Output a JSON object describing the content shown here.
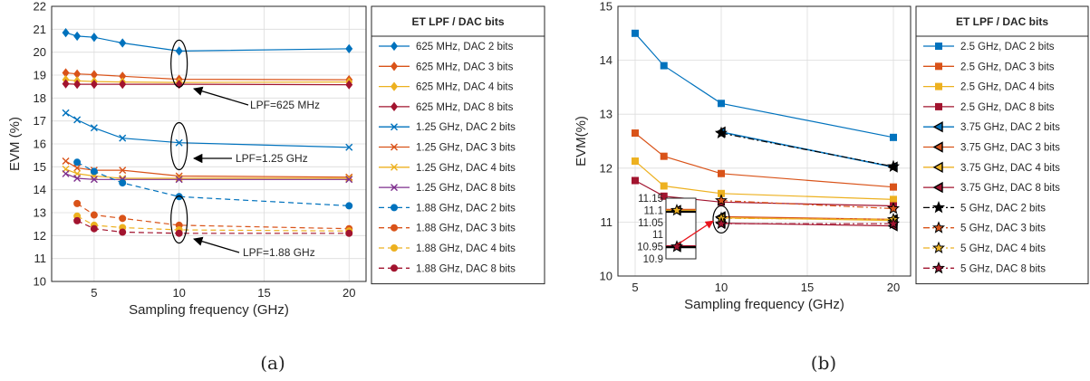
{
  "panel_labels": [
    "(a)",
    "(b)"
  ],
  "chart_data": [
    {
      "type": "line",
      "panel": "(a)",
      "xlabel": "Sampling frequency (GHz)",
      "ylabel": "EVM (%)",
      "xlim": [
        2.5,
        21
      ],
      "ylim": [
        10,
        22
      ],
      "xticks": [
        5,
        10,
        15,
        20
      ],
      "yticks": [
        10,
        11,
        12,
        13,
        14,
        15,
        16,
        17,
        18,
        19,
        20,
        21,
        22
      ],
      "grid": true,
      "legend_title": "ET LPF  / DAC bits",
      "legend_position": "outside-right",
      "annotations": [
        "LPF=625 MHz",
        "LPF=1.25 GHz",
        "LPF=1.88 GHz"
      ],
      "series": [
        {
          "name": "625 MHz, DAC 2 bits",
          "color": "#0072BD",
          "marker": "diamond",
          "dash": "solid",
          "x": [
            3.33,
            4,
            5,
            6.67,
            10,
            20
          ],
          "y": [
            20.85,
            20.7,
            20.65,
            20.4,
            20.05,
            20.15
          ]
        },
        {
          "name": "625 MHz, DAC 3 bits",
          "color": "#D95319",
          "marker": "diamond",
          "dash": "solid",
          "x": [
            3.33,
            4,
            5,
            6.67,
            10,
            20
          ],
          "y": [
            19.1,
            19.05,
            19.02,
            18.95,
            18.82,
            18.8
          ]
        },
        {
          "name": "625 MHz, DAC 4 bits",
          "color": "#EDB120",
          "marker": "diamond",
          "dash": "solid",
          "x": [
            3.33,
            4,
            5,
            6.67,
            10,
            20
          ],
          "y": [
            18.8,
            18.75,
            18.72,
            18.7,
            18.68,
            18.7
          ]
        },
        {
          "name": "625 MHz, DAC 8 bits",
          "color": "#A2142F",
          "marker": "diamond",
          "dash": "solid",
          "x": [
            3.33,
            4,
            5,
            6.67,
            10,
            20
          ],
          "y": [
            18.62,
            18.6,
            18.6,
            18.6,
            18.6,
            18.58
          ]
        },
        {
          "name": "1.25 GHz, DAC 2 bits",
          "color": "#0072BD",
          "marker": "x",
          "dash": "solid",
          "x": [
            3.33,
            4,
            5,
            6.67,
            10,
            20
          ],
          "y": [
            17.35,
            17.05,
            16.7,
            16.25,
            16.05,
            15.85
          ]
        },
        {
          "name": "1.25 GHz, DAC 3 bits",
          "color": "#D95319",
          "marker": "x",
          "dash": "solid",
          "x": [
            3.33,
            4,
            5,
            6.67,
            10,
            20
          ],
          "y": [
            15.25,
            14.95,
            14.85,
            14.85,
            14.6,
            14.55
          ]
        },
        {
          "name": "1.25 GHz, DAC 4 bits",
          "color": "#EDB120",
          "marker": "x",
          "dash": "solid",
          "x": [
            3.33,
            4,
            5,
            6.67,
            10,
            20
          ],
          "y": [
            14.9,
            14.7,
            14.6,
            14.5,
            14.5,
            14.5
          ]
        },
        {
          "name": "1.25 GHz, DAC 8 bits",
          "color": "#7E2F8E",
          "marker": "x",
          "dash": "solid",
          "x": [
            3.33,
            4,
            5,
            6.67,
            10,
            20
          ],
          "y": [
            14.7,
            14.5,
            14.45,
            14.45,
            14.45,
            14.45
          ]
        },
        {
          "name": "1.88 GHz, DAC 2 bits",
          "color": "#0072BD",
          "marker": "circle",
          "dash": "dashed",
          "x": [
            4,
            5,
            6.67,
            10,
            20
          ],
          "y": [
            15.2,
            14.8,
            14.3,
            13.7,
            13.3
          ]
        },
        {
          "name": "1.88 GHz, DAC 3 bits",
          "color": "#D95319",
          "marker": "circle",
          "dash": "dashed",
          "x": [
            4,
            5,
            6.67,
            10,
            20
          ],
          "y": [
            13.4,
            12.9,
            12.75,
            12.45,
            12.3
          ]
        },
        {
          "name": "1.88 GHz, DAC 4 bits",
          "color": "#EDB120",
          "marker": "circle",
          "dash": "dashed",
          "x": [
            4,
            5,
            6.67,
            10,
            20
          ],
          "y": [
            12.85,
            12.45,
            12.35,
            12.25,
            12.2
          ]
        },
        {
          "name": "1.88 GHz, DAC 8 bits",
          "color": "#A2142F",
          "marker": "circle",
          "dash": "dashed",
          "x": [
            4,
            5,
            6.67,
            10,
            20
          ],
          "y": [
            12.65,
            12.3,
            12.15,
            12.1,
            12.1
          ]
        }
      ]
    },
    {
      "type": "line",
      "panel": "(b)",
      "xlabel": "Sampling frequency (GHz)",
      "ylabel": "EVM(%)",
      "xlim": [
        4,
        21
      ],
      "ylim": [
        10,
        15
      ],
      "xticks": [
        5,
        10,
        15,
        20
      ],
      "yticks": [
        10,
        11,
        12,
        13,
        14,
        15
      ],
      "grid": true,
      "legend_title": "ET LPF  / DAC bits",
      "legend_position": "outside-right",
      "inset": {
        "ylim": [
          10.9,
          11.15
        ],
        "yticks": [
          "11.15",
          "11.1",
          "11.05",
          "11",
          "10.95",
          "10.9"
        ]
      },
      "series": [
        {
          "name": "2.5 GHz, DAC 2 bits",
          "color": "#0072BD",
          "marker": "square",
          "dash": "solid",
          "x": [
            5,
            6.67,
            10,
            20
          ],
          "y": [
            14.5,
            13.9,
            13.2,
            12.57
          ]
        },
        {
          "name": "2.5 GHz, DAC 3 bits",
          "color": "#D95319",
          "marker": "square",
          "dash": "solid",
          "x": [
            5,
            6.67,
            10,
            20
          ],
          "y": [
            12.65,
            12.22,
            11.9,
            11.65
          ]
        },
        {
          "name": "2.5 GHz, DAC 4 bits",
          "color": "#EDB120",
          "marker": "square",
          "dash": "solid",
          "x": [
            5,
            6.67,
            10,
            20
          ],
          "y": [
            12.13,
            11.67,
            11.53,
            11.42
          ]
        },
        {
          "name": "2.5 GHz, DAC 8 bits",
          "color": "#A2142F",
          "marker": "square",
          "dash": "solid",
          "x": [
            5,
            6.67,
            10,
            20
          ],
          "y": [
            11.77,
            11.48,
            11.37,
            11.3
          ]
        },
        {
          "name": "3.75 GHz, DAC 2 bits",
          "color": "#0072BD",
          "marker": "triangle-left",
          "dash": "solid",
          "x": [
            10,
            20
          ],
          "y": [
            12.67,
            12.02
          ]
        },
        {
          "name": "3.75 GHz, DAC 3 bits",
          "color": "#D95319",
          "marker": "triangle-left",
          "dash": "solid",
          "x": [
            10,
            20
          ],
          "y": [
            11.1,
            11.05
          ]
        },
        {
          "name": "3.75 GHz, DAC 4 bits",
          "color": "#EDB120",
          "marker": "triangle-left",
          "dash": "solid",
          "x": [
            10,
            20
          ],
          "y": [
            11.08,
            11.03
          ]
        },
        {
          "name": "3.75 GHz, DAC 8 bits",
          "color": "#A2142F",
          "marker": "triangle-left",
          "dash": "solid",
          "x": [
            10,
            20
          ],
          "y": [
            10.98,
            10.93
          ]
        },
        {
          "name": "5 GHz, DAC 2 bits",
          "color": "#000000",
          "marker": "star",
          "dash": "dashdot",
          "x": [
            10,
            20
          ],
          "y": [
            12.65,
            12.03
          ]
        },
        {
          "name": "5 GHz, DAC 3 bits",
          "color": "#D95319",
          "marker": "star",
          "dash": "dashdot",
          "x": [
            10,
            20
          ],
          "y": [
            11.4,
            11.25
          ]
        },
        {
          "name": "5 GHz, DAC 4 bits",
          "color": "#EDB120",
          "marker": "star",
          "dash": "dashdot",
          "x": [
            10,
            20
          ],
          "y": [
            11.07,
            11.05
          ]
        },
        {
          "name": "5 GHz, DAC 8 bits",
          "color": "#A2142F",
          "marker": "star",
          "dash": "dashdot",
          "x": [
            10,
            20
          ],
          "y": [
            10.97,
            10.97
          ]
        }
      ]
    }
  ]
}
